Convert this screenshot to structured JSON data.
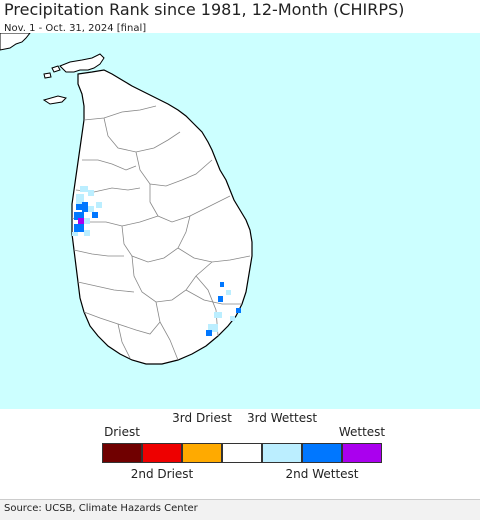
{
  "header": {
    "title": "Precipitation Rank since 1981, 12-Month (CHIRPS)",
    "subtitle": "Nov. 1 - Oct. 31, 2024 [final]"
  },
  "map": {
    "colors": {
      "ocean": "#ccffff",
      "land": "#ffffff",
      "border": "#000000",
      "admin_border": "#888888"
    }
  },
  "legend": {
    "top_labels": {
      "driest": "Driest",
      "third_driest": "3rd Driest",
      "third_wettest": "3rd Wettest",
      "wettest": "Wettest"
    },
    "bottom_labels": {
      "second_driest": "2nd Driest",
      "second_wettest": "2nd Wettest"
    },
    "colors": [
      "#700000",
      "#ee0000",
      "#ffaa00",
      "#ffffff",
      "#bbeeff",
      "#0077ff",
      "#aa00ee"
    ]
  },
  "footer": {
    "source": "Source: UCSB, Climate Hazards Center"
  }
}
